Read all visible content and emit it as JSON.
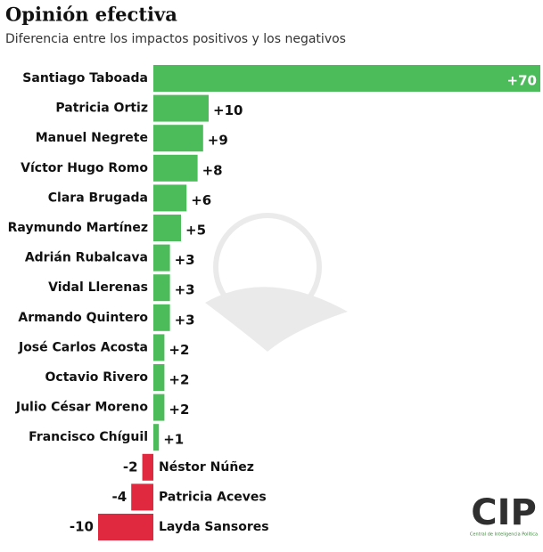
{
  "chart_data": {
    "type": "bar",
    "orientation": "horizontal",
    "title": "Opinión efectiva",
    "subtitle": "Diferencia entre los impactos positivos y los negativos",
    "categories": [
      "Santiago Taboada",
      "Patricia Ortiz",
      "Manuel Negrete",
      "Víctor Hugo Romo",
      "Clara Brugada",
      "Raymundo Martínez",
      "Adrián Rubalcava",
      "Vidal Llerenas",
      "Armando Quintero",
      "José Carlos Acosta",
      "Octavio Rivero",
      "Julio César Moreno",
      "Francisco Chíguil",
      "Néstor Núñez",
      "Patricia Aceves",
      "Layda Sansores"
    ],
    "values": [
      70,
      10,
      9,
      8,
      6,
      5,
      3,
      3,
      3,
      2,
      2,
      2,
      1,
      -2,
      -4,
      -10
    ],
    "value_labels": [
      "+70",
      "+10",
      "+9",
      "+8",
      "+6",
      "+5",
      "+3",
      "+3",
      "+3",
      "+2",
      "+2",
      "+2",
      "+1",
      "-2",
      "-4",
      "-10"
    ],
    "positive_color": "#4cbb5a",
    "negative_color": "#e0293f",
    "logo": {
      "text": "CIP",
      "caption": "Central de Inteligencia Política"
    }
  }
}
